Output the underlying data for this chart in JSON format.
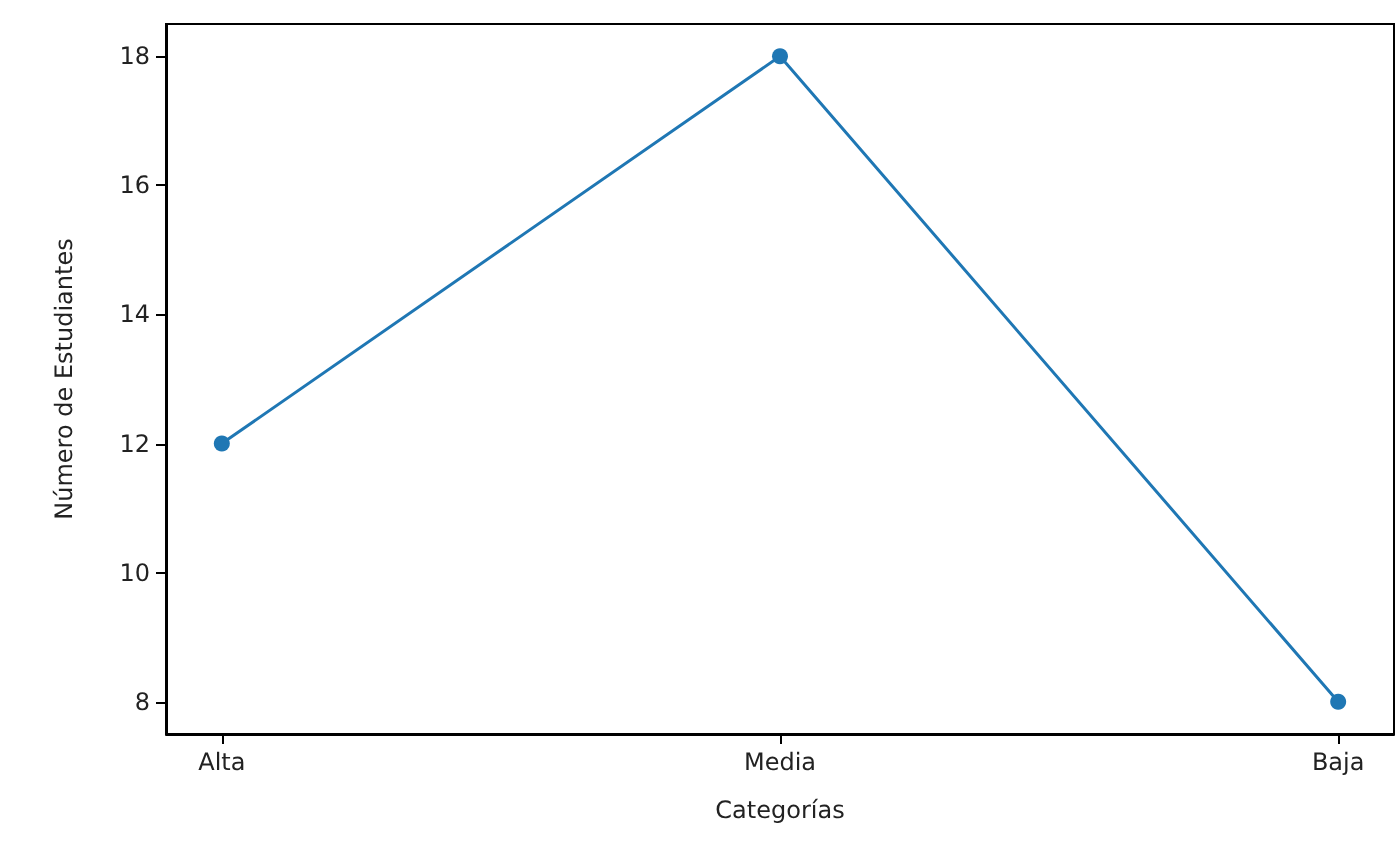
{
  "chart_data": {
    "type": "line",
    "xlabel": "Categorías",
    "ylabel": "Número de Estudiantes",
    "categories": [
      "Alta",
      "Media",
      "Baja"
    ],
    "series": [
      {
        "color": "#1f77b4",
        "values": [
          12,
          18,
          8
        ]
      }
    ],
    "ylim": [
      7.5,
      18.5
    ],
    "yticks": [
      8,
      10,
      12,
      14,
      16,
      18
    ],
    "grid": false,
    "marker": "circle",
    "line_style": "solid"
  }
}
